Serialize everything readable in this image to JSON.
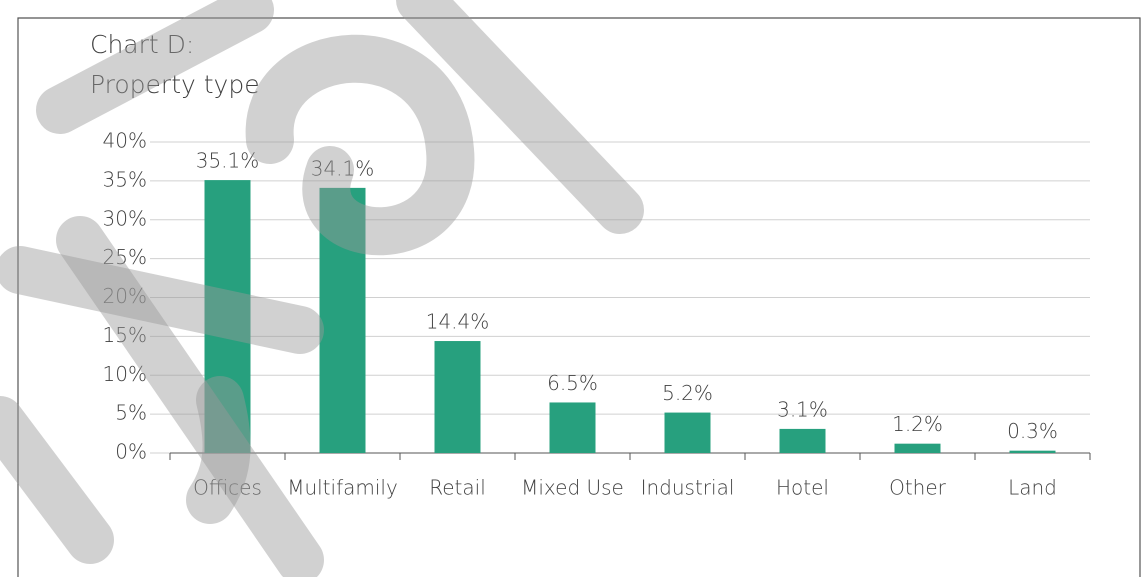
{
  "chart_data": {
    "type": "bar",
    "title": [
      "Chart D:",
      "Property type"
    ],
    "categories": [
      "Offices",
      "Multifamily",
      "Retail",
      "Mixed Use",
      "Industrial",
      "Hotel",
      "Other",
      "Land"
    ],
    "values": [
      35.1,
      34.1,
      14.4,
      6.5,
      5.2,
      3.1,
      1.2,
      0.3
    ],
    "value_labels": [
      "35.1%",
      "34.1%",
      "14.4%",
      "6.5%",
      "5.2%",
      "3.1%",
      "1.2%",
      "0.3%"
    ],
    "color": "#27a07e",
    "ylim": [
      0,
      40
    ],
    "yticks": [
      {
        "value": 0,
        "label": "0%"
      },
      {
        "value": 5,
        "label": "5%"
      },
      {
        "value": 10,
        "label": "10%"
      },
      {
        "value": 15,
        "label": "15%"
      },
      {
        "value": 20,
        "label": "20%"
      },
      {
        "value": 25,
        "label": "25%"
      },
      {
        "value": 30,
        "label": "30%"
      },
      {
        "value": 35,
        "label": "35%"
      },
      {
        "value": 40,
        "label": "40%"
      }
    ],
    "grid": true
  }
}
